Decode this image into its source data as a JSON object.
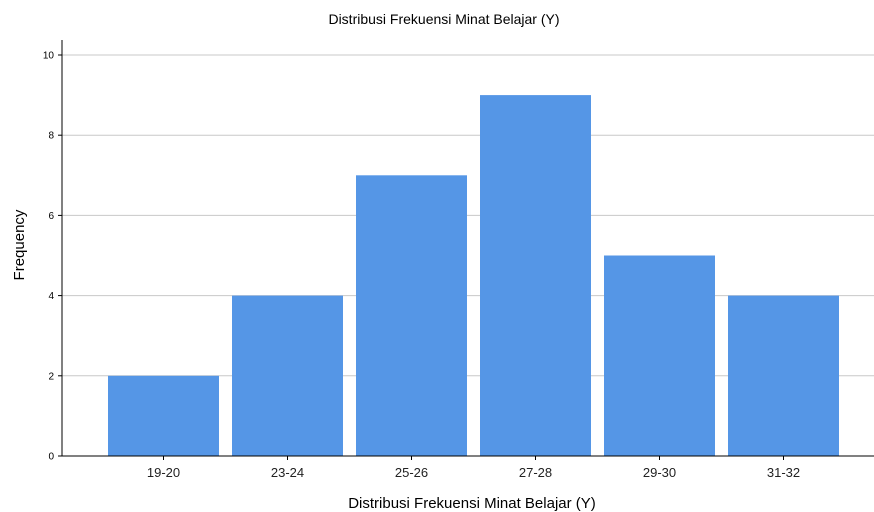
{
  "chart_data": {
    "type": "bar",
    "title": "Distribusi Frekuensi Minat Belajar (Y)",
    "xlabel": "Distribusi Frekuensi Minat Belajar (Y)",
    "ylabel": "Frequency",
    "categories": [
      "19-20",
      "23-24",
      "25-26",
      "27-28",
      "29-30",
      "31-32"
    ],
    "values": [
      2,
      4,
      7,
      9,
      5,
      4
    ],
    "ylim": [
      0,
      10
    ],
    "yticks": [
      0,
      2,
      4,
      6,
      8,
      10
    ],
    "grid": true,
    "bar_color": "#5596e6",
    "gridline_color": "#c8c8c8"
  }
}
